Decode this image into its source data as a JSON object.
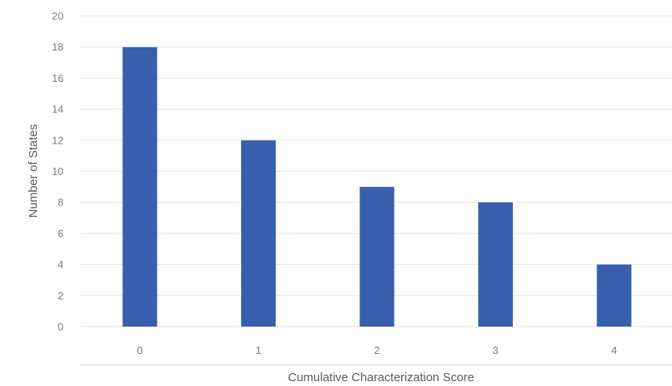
{
  "chart_data": {
    "type": "bar",
    "title": "",
    "xlabel": "Cumulative Characterization Score",
    "ylabel": "Number of States",
    "categories": [
      "0",
      "1",
      "2",
      "3",
      "4"
    ],
    "values": [
      18,
      12,
      9,
      8,
      4
    ],
    "ylim": [
      0,
      20
    ],
    "yticks": [
      0,
      2,
      4,
      6,
      8,
      10,
      12,
      14,
      16,
      18,
      20
    ],
    "grid": true,
    "legend": "none",
    "bar_color": "#3a5fad"
  }
}
